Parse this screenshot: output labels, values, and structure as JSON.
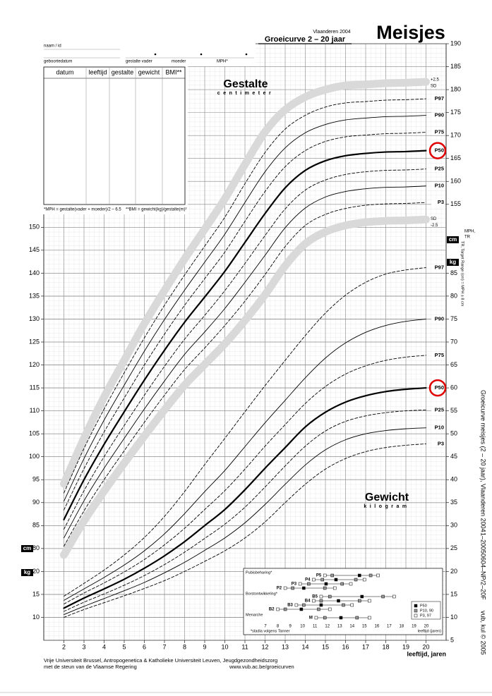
{
  "header": {
    "region": "Vlaanderen 2004",
    "subtitle": "Groeicurve 2 – 20 jaar",
    "title": "Meisjes"
  },
  "form": {
    "name": "naam / id",
    "birth": "geboortedatum",
    "father": "gestalte vader",
    "mother": "moeder",
    "mph": "MPH*"
  },
  "table": {
    "columns": [
      "datum",
      "leeftijd",
      "gestalte",
      "gewicht",
      "BMI**"
    ],
    "notes": [
      "*MPH = gestalte(vader + moeder)/2 – 6.5",
      "**BMI = gewicht(kg)/gestalte(m)²"
    ]
  },
  "side": {
    "mph_tr": [
      "MPH,",
      "TR"
    ],
    "target_range": "TR, Target Range (cm) = MPH ± 8 cm",
    "info": [
      "Groeicurve meisjes (2 – 20 jaar), Vlaanderen 2004",
      "1–20050604–NP/2–20F",
      "vub, kul © 2005"
    ]
  },
  "footer": {
    "lines": [
      "Vrije Universiteit Brussel, Antropogenetica & Katholieke Universiteit Leuven, Jeugdgezondheidszorg",
      "met de steun van de Vlaamse Regering"
    ],
    "url": "www.vub.ac.be/groeicurven"
  },
  "chart_data": [
    {
      "type": "line",
      "title": "Gestalte",
      "subtitle": "centimeter",
      "unit": "cm",
      "sd_label": "SD",
      "x": [
        2,
        3,
        4,
        5,
        6,
        7,
        8,
        9,
        10,
        11,
        12,
        13,
        14,
        15,
        16,
        17,
        18,
        19,
        20
      ],
      "xlim": [
        1,
        21
      ],
      "ylim": [
        60,
        190
      ],
      "yticks": [
        80,
        85,
        90,
        95,
        100,
        105,
        110,
        115,
        120,
        125,
        130,
        135,
        140,
        145,
        150
      ],
      "y2lim": [
        60,
        190
      ],
      "y2ticks": [
        155,
        160,
        165,
        170,
        175,
        180,
        185,
        190
      ],
      "series": [
        {
          "name": "+2.5",
          "style": "band",
          "color": "#d9d9d9",
          "values": [
            94.1,
            104,
            113,
            121,
            129,
            136.2,
            143.1,
            149.6,
            156.2,
            163.7,
            170.8,
            175.6,
            178.4,
            180,
            180.9,
            181.1,
            181.4,
            181.5,
            181.7
          ]
        },
        {
          "name": "-2.5",
          "style": "band",
          "color": "#d9d9d9",
          "values": [
            78.6,
            86,
            92.5,
            98.6,
            104.5,
            110.2,
            115.6,
            120.1,
            124.6,
            129.7,
            135.3,
            141.6,
            146.4,
            149,
            150.4,
            151.1,
            151.4,
            151.5,
            151.7
          ]
        },
        {
          "name": "P97",
          "style": "dashed",
          "color": "#000000",
          "values": [
            92.1,
            101.8,
            110.4,
            118.3,
            125.9,
            133,
            139.6,
            145.9,
            152.2,
            159.5,
            166.3,
            171.4,
            174.4,
            176.2,
            177.1,
            177.4,
            177.7,
            177.8,
            178
          ]
        },
        {
          "name": "P90",
          "style": "solid",
          "color": "#000000",
          "values": [
            90.3,
            99.6,
            108,
            115.6,
            123,
            129.9,
            136.3,
            142.4,
            148.5,
            155.4,
            162.1,
            167.3,
            170.6,
            172.4,
            173.4,
            173.8,
            174.1,
            174.2,
            174.4
          ]
        },
        {
          "name": "P75",
          "style": "dashed",
          "color": "#000000",
          "values": [
            88.4,
            97.4,
            105.4,
            112.8,
            120,
            126.7,
            133,
            138.8,
            144.6,
            151.3,
            157.8,
            163.2,
            166.7,
            168.7,
            169.7,
            170.1,
            170.4,
            170.5,
            170.7
          ]
        },
        {
          "name": "P50",
          "style": "bold",
          "color": "#000000",
          "values": [
            86.3,
            95,
            102.7,
            109.8,
            116.7,
            123.2,
            129.3,
            134.8,
            140.4,
            146.7,
            153,
            158.6,
            162.4,
            164.5,
            165.6,
            166.1,
            166.4,
            166.5,
            166.7
          ]
        },
        {
          "name": "P25",
          "style": "dashed",
          "color": "#000000",
          "values": [
            84.2,
            92.6,
            100,
            106.8,
            113.4,
            119.7,
            125.6,
            130.8,
            136.2,
            142.1,
            148.2,
            154,
            158.1,
            160.3,
            161.5,
            162.1,
            162.4,
            162.5,
            162.7
          ]
        },
        {
          "name": "P10",
          "style": "solid",
          "color": "#000000",
          "values": [
            82.3,
            90.4,
            97.5,
            104,
            110.4,
            116.5,
            122.3,
            127.2,
            132.3,
            138,
            143.9,
            149.9,
            154.2,
            156.6,
            157.8,
            158.4,
            158.7,
            158.8,
            159
          ]
        },
        {
          "name": "P3",
          "style": "dashed",
          "color": "#000000",
          "values": [
            80.5,
            88.2,
            95,
            101.3,
            107.5,
            113.4,
            119,
            123.7,
            128.6,
            133.9,
            139.7,
            145.8,
            150.4,
            152.8,
            154.1,
            154.8,
            155.1,
            155.2,
            155.4
          ]
        }
      ]
    },
    {
      "type": "line",
      "title": "Gewicht",
      "subtitle": "kilogram",
      "unit": "kg",
      "xlabel": "leeftijd, jaren",
      "x": [
        2,
        3,
        4,
        5,
        6,
        7,
        8,
        9,
        10,
        11,
        12,
        13,
        14,
        15,
        16,
        17,
        18,
        19,
        20
      ],
      "xlim": [
        1,
        21
      ],
      "xticks": [
        2,
        3,
        4,
        5,
        6,
        7,
        8,
        9,
        10,
        11,
        12,
        13,
        14,
        15,
        16,
        17,
        18,
        19,
        20
      ],
      "ylim": [
        5,
        135
      ],
      "yticks": [
        10,
        15,
        20
      ],
      "y2lim": [
        5,
        135
      ],
      "y2ticks": [
        5,
        10,
        15,
        20,
        25,
        30,
        35,
        40,
        45,
        50,
        55,
        60,
        65,
        70,
        75,
        80,
        85
      ],
      "series": [
        {
          "name": "P97",
          "style": "dashed",
          "color": "#000000",
          "values": [
            14.6,
            17.4,
            20.3,
            23.6,
            27.4,
            32,
            37.4,
            43.3,
            49,
            54.8,
            60.5,
            66,
            71.4,
            76.3,
            80.2,
            83,
            84.8,
            85.7,
            86.2
          ]
        },
        {
          "name": "P90",
          "style": "solid",
          "color": "#000000",
          "values": [
            13.7,
            16.2,
            18.7,
            21.4,
            24.5,
            28.2,
            32.6,
            37.4,
            42,
            47.2,
            52.4,
            57.3,
            62.2,
            66.5,
            69.8,
            72.1,
            73.6,
            74.5,
            75
          ]
        },
        {
          "name": "P75",
          "style": "dashed",
          "color": "#000000",
          "values": [
            12.9,
            15.3,
            17.5,
            19.9,
            22.6,
            25.8,
            29.4,
            33.5,
            37.6,
            42.3,
            47.3,
            52,
            56.6,
            60.3,
            63,
            64.8,
            66,
            66.7,
            67.1
          ]
        },
        {
          "name": "P50",
          "style": "bold",
          "color": "#000000",
          "values": [
            12,
            14.2,
            16.2,
            18.3,
            20.7,
            23.4,
            26.5,
            30,
            33.5,
            37.8,
            42.5,
            47,
            51.5,
            54.7,
            56.9,
            58.3,
            59.2,
            59.7,
            60
          ]
        },
        {
          "name": "P25",
          "style": "dashed",
          "color": "#000000",
          "values": [
            11.3,
            13.3,
            15.1,
            17,
            19.1,
            21.5,
            24.2,
            27.2,
            30.3,
            34,
            38.4,
            43,
            47.3,
            50.6,
            52.7,
            53.9,
            54.6,
            55,
            55.2
          ]
        },
        {
          "name": "P10",
          "style": "solid",
          "color": "#000000",
          "values": [
            10.6,
            12.4,
            14.1,
            15.8,
            17.6,
            19.7,
            22,
            24.6,
            27.3,
            30.6,
            34.6,
            39,
            43.2,
            46.5,
            48.7,
            50,
            50.7,
            51.1,
            51.3
          ]
        },
        {
          "name": "P3",
          "style": "dashed",
          "color": "#000000",
          "values": [
            10,
            11.7,
            13.2,
            14.7,
            16.3,
            18,
            20,
            22.2,
            24.5,
            27.3,
            30.8,
            35,
            39,
            42.3,
            44.6,
            46.1,
            47,
            47.5,
            47.8
          ]
        }
      ]
    },
    {
      "type": "dot",
      "xlim": [
        5.4,
        21.2
      ],
      "xticks": [
        7,
        8,
        9,
        10,
        11,
        12,
        13,
        14,
        15,
        16,
        17,
        18,
        19,
        20
      ],
      "xlabel": "leeftijd (jaren)",
      "note": "*stadia volgens Tanner",
      "colors": [
        "#ffffff",
        "#999999",
        "#000000",
        "#999999",
        "#ffffff"
      ],
      "legend": [
        {
          "label": "P50",
          "color": "#000000"
        },
        {
          "label": "P10, 90",
          "color": "#999999"
        },
        {
          "label": "P3, 97",
          "color": "#ffffff"
        }
      ],
      "groups": [
        {
          "label": "Pubisbeharing*",
          "rows": [
            {
              "label": "P5",
              "values": [
                11.8,
                12.4,
                14.6,
                15.5,
                16.1
              ]
            },
            {
              "label": "P4",
              "values": [
                10.9,
                11.6,
                12.7,
                14.3,
                15
              ]
            },
            {
              "label": "P3",
              "values": [
                9.8,
                10.5,
                11.9,
                13.2,
                13.9
              ]
            },
            {
              "label": "P2",
              "values": [
                8.6,
                9.2,
                10.1,
                11.8,
                12.6
              ]
            }
          ]
        },
        {
          "label": "Borstontwikkeling*",
          "rows": [
            {
              "label": "B5",
              "values": [
                11.5,
                12.2,
                14.8,
                16.5,
                17.4
              ]
            },
            {
              "label": "B4",
              "values": [
                10.9,
                11.5,
                12.9,
                14.6,
                15.4
              ]
            },
            {
              "label": "B3",
              "values": [
                9.5,
                10.1,
                11.5,
                13.3,
                14
              ]
            },
            {
              "label": "B2",
              "values": [
                8,
                8.6,
                9.9,
                11.3,
                12.2
              ]
            }
          ]
        },
        {
          "label": "Menarche",
          "rows": [
            {
              "label": "M",
              "values": [
                11.1,
                11.8,
                13.1,
                14.4,
                15.4
              ]
            }
          ]
        }
      ]
    }
  ]
}
